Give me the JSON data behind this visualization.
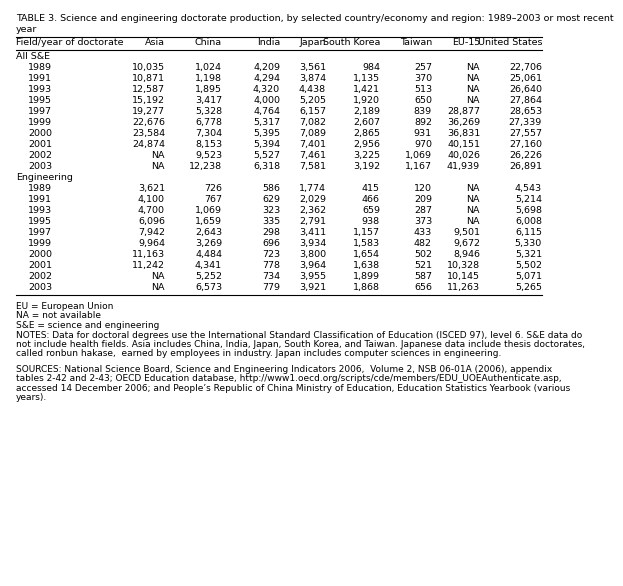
{
  "title_line1": "TABLE 3. Science and engineering doctorate production, by selected country/economy and region: 1989–2003 or most recent",
  "title_line2": "year",
  "columns": [
    "Field/year of doctorate",
    "Asia",
    "China",
    "India",
    "Japan",
    "South Korea",
    "Taiwan",
    "EU-15",
    "United States"
  ],
  "all_se_label": "All S&E",
  "engineering_label": "Engineering",
  "all_se_data": [
    [
      "1989",
      "10,035",
      "1,024",
      "4,209",
      "3,561",
      "984",
      "257",
      "NA",
      "22,706"
    ],
    [
      "1991",
      "10,871",
      "1,198",
      "4,294",
      "3,874",
      "1,135",
      "370",
      "NA",
      "25,061"
    ],
    [
      "1993",
      "12,587",
      "1,895",
      "4,320",
      "4,438",
      "1,421",
      "513",
      "NA",
      "26,640"
    ],
    [
      "1995",
      "15,192",
      "3,417",
      "4,000",
      "5,205",
      "1,920",
      "650",
      "NA",
      "27,864"
    ],
    [
      "1997",
      "19,277",
      "5,328",
      "4,764",
      "6,157",
      "2,189",
      "839",
      "28,877",
      "28,653"
    ],
    [
      "1999",
      "22,676",
      "6,778",
      "5,317",
      "7,082",
      "2,607",
      "892",
      "36,269",
      "27,339"
    ],
    [
      "2000",
      "23,584",
      "7,304",
      "5,395",
      "7,089",
      "2,865",
      "931",
      "36,831",
      "27,557"
    ],
    [
      "2001",
      "24,874",
      "8,153",
      "5,394",
      "7,401",
      "2,956",
      "970",
      "40,151",
      "27,160"
    ],
    [
      "2002",
      "NA",
      "9,523",
      "5,527",
      "7,461",
      "3,225",
      "1,069",
      "40,026",
      "26,226"
    ],
    [
      "2003",
      "NA",
      "12,238",
      "6,318",
      "7,581",
      "3,192",
      "1,167",
      "41,939",
      "26,891"
    ]
  ],
  "engineering_data": [
    [
      "1989",
      "3,621",
      "726",
      "586",
      "1,774",
      "415",
      "120",
      "NA",
      "4,543"
    ],
    [
      "1991",
      "4,100",
      "767",
      "629",
      "2,029",
      "466",
      "209",
      "NA",
      "5,214"
    ],
    [
      "1993",
      "4,700",
      "1,069",
      "323",
      "2,362",
      "659",
      "287",
      "NA",
      "5,698"
    ],
    [
      "1995",
      "6,096",
      "1,659",
      "335",
      "2,791",
      "938",
      "373",
      "NA",
      "6,008"
    ],
    [
      "1997",
      "7,942",
      "2,643",
      "298",
      "3,411",
      "1,157",
      "433",
      "9,501",
      "6,115"
    ],
    [
      "1999",
      "9,964",
      "3,269",
      "696",
      "3,934",
      "1,583",
      "482",
      "9,672",
      "5,330"
    ],
    [
      "2000",
      "11,163",
      "4,484",
      "723",
      "3,800",
      "1,654",
      "502",
      "8,946",
      "5,321"
    ],
    [
      "2001",
      "11,242",
      "4,341",
      "778",
      "3,964",
      "1,638",
      "521",
      "10,328",
      "5,502"
    ],
    [
      "2002",
      "NA",
      "5,252",
      "734",
      "3,955",
      "1,899",
      "587",
      "10,145",
      "5,071"
    ],
    [
      "2003",
      "NA",
      "6,573",
      "779",
      "3,921",
      "1,868",
      "656",
      "11,263",
      "5,265"
    ]
  ],
  "footnote_lines": [
    [
      "EU = European Union"
    ],
    [
      "NA = not available"
    ],
    [
      "S&E = science and engineering"
    ],
    [
      "NOTES: Data for doctoral degrees use the International Standard Classification of Education (ISCED 97), level 6. S&E data do"
    ],
    [
      "not include health fields. Asia includes China, India, Japan, South Korea, and Taiwan. Japanese data include thesis doctorates,"
    ],
    [
      "called ",
      "ronbun hakase",
      ",  earned by employees in industry. Japan includes computer sciences in engineering."
    ],
    [
      ""
    ],
    [
      "SOURCES: National Science Board, ",
      "Science and Engineering Indicators 2006",
      ",  Volume 2, NSB 06-01A (2006), appendix"
    ],
    [
      "tables 2-42 and 2-43; OECD Education database, http://www1.oecd.org/scripts/cde/members/EDU_UOEAuthenticate.asp,"
    ],
    [
      "accessed 14 December 2006; and People’s Republic of China Ministry of Education, Education Statistics Yearbook (various"
    ],
    [
      "years)."
    ]
  ],
  "bg_color": "white",
  "text_color": "black",
  "line_color": "black",
  "font_size": 6.8,
  "title_font_size": 6.8,
  "footnote_font_size": 6.5
}
